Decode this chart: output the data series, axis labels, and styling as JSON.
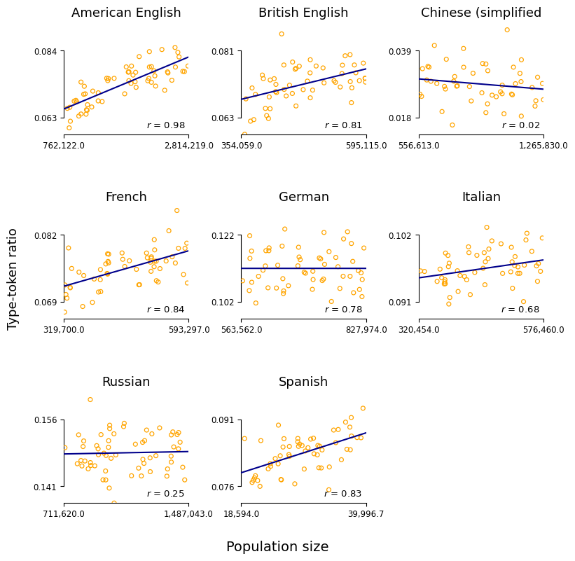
{
  "subplots": [
    {
      "title": "American English",
      "xlim": [
        762122.0,
        2814219.0
      ],
      "ylim": [
        0.063,
        0.084
      ],
      "yticks": [
        0.063,
        0.084
      ],
      "xticks": [
        762122.0,
        2814219.0
      ],
      "r": 0.98,
      "n_points": 60,
      "seed": 101
    },
    {
      "title": "British English",
      "xlim": [
        354059.0,
        595115.0
      ],
      "ylim": [
        0.063,
        0.081
      ],
      "yticks": [
        0.063,
        0.081
      ],
      "xticks": [
        354059.0,
        595115.0
      ],
      "r": 0.81,
      "n_points": 55,
      "seed": 202
    },
    {
      "title": "Chinese (simplified",
      "xlim": [
        556613.0,
        1265830.0
      ],
      "ylim": [
        0.018,
        0.039
      ],
      "yticks": [
        0.018,
        0.039
      ],
      "xticks": [
        556613.0,
        1265830.0
      ],
      "r": 0.02,
      "n_points": 50,
      "seed": 303
    },
    {
      "title": "French",
      "xlim": [
        319700.0,
        593297.0
      ],
      "ylim": [
        0.069,
        0.082
      ],
      "yticks": [
        0.069,
        0.082
      ],
      "xticks": [
        319700.0,
        593297.0
      ],
      "r": 0.84,
      "n_points": 55,
      "seed": 404
    },
    {
      "title": "German",
      "xlim": [
        563562.0,
        827974.0
      ],
      "ylim": [
        0.102,
        0.122
      ],
      "yticks": [
        0.102,
        0.122
      ],
      "xticks": [
        563562.0,
        827974.0
      ],
      "r": 0.78,
      "n_points": 55,
      "seed": 505
    },
    {
      "title": "Italian",
      "xlim": [
        320454.0,
        576460.0
      ],
      "ylim": [
        0.091,
        0.102
      ],
      "yticks": [
        0.091,
        0.102
      ],
      "xticks": [
        320454.0,
        576460.0
      ],
      "r": 0.68,
      "n_points": 55,
      "seed": 606
    },
    {
      "title": "Russian",
      "xlim": [
        711620.0,
        1487043.0
      ],
      "ylim": [
        0.141,
        0.156
      ],
      "yticks": [
        0.141,
        0.156
      ],
      "xticks": [
        711620.0,
        1487043.0
      ],
      "r": 0.25,
      "n_points": 60,
      "seed": 707
    },
    {
      "title": "Spanish",
      "xlim": [
        18594.0,
        39996.7
      ],
      "ylim": [
        0.076,
        0.091
      ],
      "yticks": [
        0.076,
        0.091
      ],
      "xticks": [
        18594.0,
        39996.7
      ],
      "r": 0.83,
      "n_points": 55,
      "seed": 808
    }
  ],
  "dot_color": "#FFA500",
  "line_color": "#00008B",
  "background_color": "#FFFFFF",
  "ylabel": "Type-token ratio",
  "xlabel": "Population size",
  "title_fontsize": 13,
  "tick_fontsize": 8.5,
  "r_fontsize": 9.5,
  "label_fontsize": 13
}
